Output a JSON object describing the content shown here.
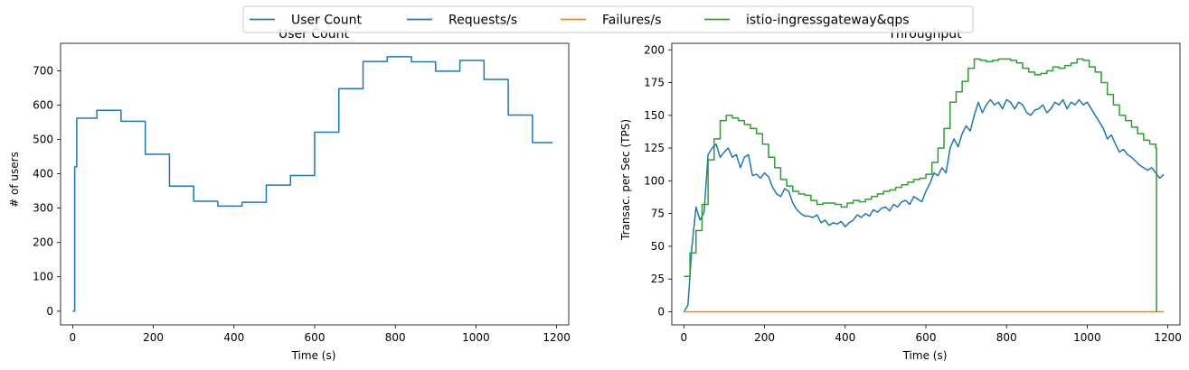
{
  "legend": {
    "placement": "top-center",
    "entries": [
      {
        "label": "User Count",
        "color": "#1f77b4"
      },
      {
        "label": "Requests/s",
        "color": "#1f77b4"
      },
      {
        "label": "Failures/s",
        "color": "#ff7f0e"
      },
      {
        "label": "istio-ingressgateway&qps",
        "color": "#2ca02c"
      }
    ]
  },
  "chart_data": [
    {
      "type": "line",
      "title": "User Count",
      "xlabel": "Time (s)",
      "ylabel": "# of users",
      "xlim": [
        -30,
        1230
      ],
      "ylim": [
        -40,
        780
      ],
      "xticks": [
        0,
        200,
        400,
        600,
        800,
        1000,
        1200
      ],
      "yticks": [
        0,
        100,
        200,
        300,
        400,
        500,
        600,
        700
      ],
      "grid": false,
      "series": [
        {
          "name": "User Count",
          "color": "#1f77b4",
          "step": true,
          "x": [
            0,
            5,
            10,
            60,
            120,
            180,
            240,
            300,
            360,
            420,
            480,
            540,
            600,
            660,
            720,
            780,
            840,
            900,
            960,
            1020,
            1080,
            1140,
            1190
          ],
          "y": [
            0,
            420,
            562,
            585,
            553,
            457,
            364,
            320,
            306,
            317,
            367,
            395,
            521,
            648,
            727,
            741,
            726,
            699,
            730,
            675,
            571,
            491,
            491
          ]
        }
      ]
    },
    {
      "type": "line",
      "title": "Throughput",
      "xlabel": "Time (s)",
      "ylabel": "Transac. per Sec (TPS)",
      "xlim": [
        -30,
        1230
      ],
      "ylim": [
        -10,
        205
      ],
      "xticks": [
        0,
        200,
        400,
        600,
        800,
        1000,
        1200
      ],
      "yticks": [
        0,
        25,
        50,
        75,
        100,
        125,
        150,
        175,
        200
      ],
      "grid": false,
      "series": [
        {
          "name": "Requests/s",
          "color": "#1f77b4",
          "x": [
            0,
            10,
            20,
            30,
            40,
            50,
            60,
            70,
            80,
            90,
            100,
            110,
            120,
            130,
            140,
            150,
            160,
            170,
            180,
            190,
            200,
            210,
            220,
            230,
            240,
            250,
            260,
            270,
            280,
            290,
            300,
            310,
            320,
            330,
            340,
            350,
            360,
            370,
            380,
            390,
            400,
            410,
            420,
            430,
            440,
            450,
            460,
            470,
            480,
            490,
            500,
            510,
            520,
            530,
            540,
            550,
            560,
            570,
            580,
            590,
            600,
            610,
            620,
            630,
            640,
            650,
            660,
            670,
            680,
            690,
            700,
            710,
            720,
            730,
            740,
            750,
            760,
            770,
            780,
            790,
            800,
            810,
            820,
            830,
            840,
            850,
            860,
            870,
            880,
            890,
            900,
            910,
            920,
            930,
            940,
            950,
            960,
            970,
            980,
            990,
            1000,
            1010,
            1020,
            1030,
            1040,
            1050,
            1060,
            1070,
            1080,
            1090,
            1100,
            1110,
            1120,
            1130,
            1140,
            1150,
            1160,
            1170,
            1180,
            1190
          ],
          "y": [
            0,
            5,
            50,
            80,
            70,
            76,
            120,
            125,
            128,
            118,
            122,
            125,
            118,
            120,
            110,
            118,
            120,
            104,
            105,
            102,
            106,
            103,
            95,
            90,
            88,
            94,
            92,
            83,
            78,
            75,
            73,
            73,
            72,
            74,
            68,
            70,
            66,
            68,
            67,
            69,
            65,
            68,
            70,
            74,
            72,
            75,
            73,
            78,
            76,
            79,
            80,
            77,
            82,
            80,
            84,
            85,
            82,
            88,
            86,
            84,
            92,
            98,
            106,
            104,
            110,
            106,
            125,
            132,
            126,
            136,
            142,
            138,
            150,
            160,
            152,
            158,
            162,
            158,
            160,
            155,
            162,
            160,
            155,
            160,
            158,
            152,
            150,
            154,
            155,
            158,
            152,
            155,
            160,
            158,
            162,
            155,
            160,
            158,
            162,
            158,
            160,
            155,
            150,
            145,
            140,
            132,
            135,
            128,
            122,
            124,
            120,
            118,
            115,
            112,
            110,
            108,
            110,
            106,
            102,
            105
          ]
        },
        {
          "name": "Failures/s",
          "color": "#ff7f0e",
          "x": [
            0,
            1190
          ],
          "y": [
            0,
            0
          ]
        },
        {
          "name": "istio-ingressgateway&qps",
          "color": "#2ca02c",
          "step": true,
          "x": [
            0,
            15,
            30,
            45,
            60,
            75,
            90,
            105,
            120,
            135,
            150,
            165,
            180,
            195,
            210,
            225,
            240,
            255,
            270,
            285,
            300,
            315,
            330,
            345,
            360,
            375,
            390,
            405,
            420,
            435,
            450,
            465,
            480,
            495,
            510,
            525,
            540,
            555,
            570,
            585,
            600,
            615,
            630,
            645,
            660,
            675,
            690,
            705,
            720,
            735,
            750,
            765,
            780,
            795,
            810,
            825,
            840,
            855,
            870,
            885,
            900,
            915,
            930,
            945,
            960,
            975,
            990,
            1005,
            1020,
            1035,
            1050,
            1065,
            1080,
            1095,
            1110,
            1125,
            1140,
            1155,
            1170,
            1172
          ],
          "y": [
            27,
            45,
            62,
            82,
            116,
            132,
            146,
            150,
            148,
            146,
            143,
            140,
            136,
            128,
            118,
            110,
            101,
            96,
            92,
            90,
            89,
            85,
            82,
            83,
            83,
            82,
            80,
            83,
            85,
            84,
            86,
            88,
            90,
            92,
            93,
            95,
            97,
            99,
            101,
            102,
            105,
            114,
            125,
            140,
            160,
            168,
            176,
            186,
            193,
            192,
            191,
            192,
            193,
            193,
            192,
            190,
            186,
            183,
            181,
            182,
            184,
            187,
            186,
            188,
            190,
            193,
            192,
            187,
            183,
            175,
            166,
            158,
            150,
            146,
            141,
            136,
            131,
            128,
            125,
            0
          ]
        }
      ]
    }
  ]
}
